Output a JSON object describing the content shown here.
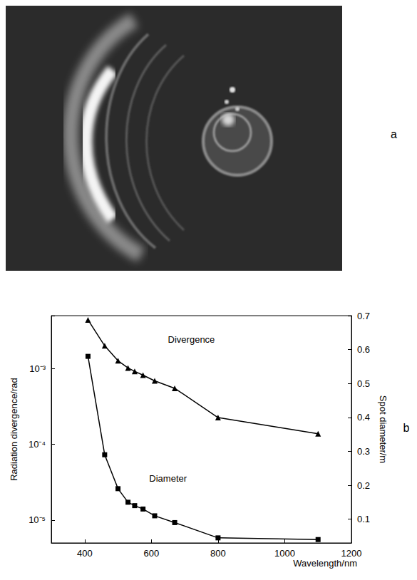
{
  "photo": {
    "panel_label": "a"
  },
  "chart_data": {
    "type": "line",
    "panel_label": "b",
    "xlabel": "Wavelength/nm",
    "ylabel": "Radiation divergence/rad",
    "y2label": "Spot diameter/m",
    "x": [
      410,
      460,
      500,
      530,
      550,
      575,
      610,
      670,
      800,
      1100
    ],
    "xlim": [
      300,
      1200
    ],
    "xticks": [
      400,
      600,
      800,
      1000,
      1200
    ],
    "ylim": [
      5e-06,
      0.005
    ],
    "yticks": [
      {
        "value": 1e-05,
        "label": "10⁻⁵"
      },
      {
        "value": 0.0001,
        "label": "10⁻⁴"
      },
      {
        "value": 0.001,
        "label": "10⁻³"
      }
    ],
    "log": "y",
    "y2lim": [
      0.03,
      0.7
    ],
    "y2ticks": [
      0.1,
      0.2,
      0.3,
      0.4,
      0.5,
      0.6,
      0.7
    ],
    "grid": false,
    "series": [
      {
        "name": "Divergence",
        "color": "#000000",
        "marker": "triangle",
        "values": [
          0.0044,
          0.002,
          0.00127,
          0.00102,
          0.00092,
          0.00082,
          0.00069,
          0.00055,
          0.000226,
          0.000138
        ]
      },
      {
        "name": "Diameter",
        "color": "#000000",
        "marker": "square",
        "axis": "y2",
        "values": [
          0.58,
          0.29,
          0.19,
          0.15,
          0.14,
          0.13,
          0.11,
          0.09,
          0.045,
          0.04
        ]
      }
    ]
  }
}
